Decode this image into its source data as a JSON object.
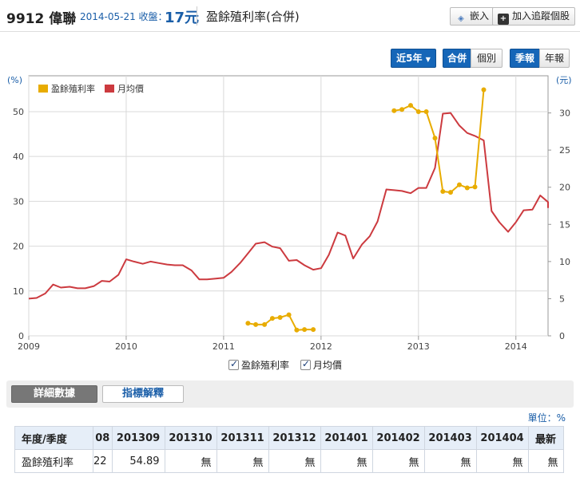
{
  "header": {
    "stock_id_name": "9912 偉聯",
    "date_close": "2014-05-21 收盤：",
    "price": "17元",
    "page_title": "盈餘殖利率(合併)",
    "embed_label": "嵌入",
    "watchlist_label": "加入追蹤個股"
  },
  "controls": {
    "range_label": "近5年",
    "consolidated_label": "合併",
    "individual_label": "個別",
    "quarterly_label": "季報",
    "annual_label": "年報"
  },
  "colors": {
    "yield": "#e8ac00",
    "price": "#cc3a3f",
    "grid": "#d9d9d9",
    "accent": "#1566b8"
  },
  "chart_data": {
    "type": "line",
    "left_unit": "(%)",
    "right_unit": "(元)",
    "x_ticks": [
      "2009",
      "2010",
      "2011",
      "2012",
      "2013",
      "2014"
    ],
    "y_left_ticks": [
      "0",
      "10",
      "20",
      "30",
      "40",
      "50"
    ],
    "y_right_ticks": [
      "0",
      "5",
      "10",
      "15",
      "20",
      "25",
      "30"
    ],
    "ylim_left": [
      0,
      58
    ],
    "ylim_right": [
      0,
      35
    ],
    "xlim": [
      2009.0,
      2014.33
    ],
    "legend_position": "top-left",
    "series": [
      {
        "name": "盈餘殖利率",
        "axis": "left",
        "style": "line-markers",
        "segments": [
          [
            [
              2011.25,
              2.8
            ],
            [
              2011.33,
              2.5
            ],
            [
              2011.42,
              2.5
            ],
            [
              2011.5,
              3.9
            ],
            [
              2011.58,
              4.1
            ],
            [
              2011.67,
              4.7
            ],
            [
              2011.75,
              1.3
            ],
            [
              2011.83,
              1.4
            ],
            [
              2011.92,
              1.4
            ]
          ],
          [
            [
              2012.75,
              50.2
            ],
            [
              2012.83,
              50.5
            ],
            [
              2012.92,
              51.4
            ],
            [
              2013.0,
              50.0
            ],
            [
              2013.08,
              50.0
            ],
            [
              2013.17,
              44.1
            ],
            [
              2013.25,
              32.2
            ],
            [
              2013.33,
              32.0
            ],
            [
              2013.42,
              33.7
            ],
            [
              2013.5,
              33.0
            ],
            [
              2013.58,
              33.2
            ],
            [
              2013.67,
              54.89
            ]
          ]
        ]
      },
      {
        "name": "月均價",
        "axis": "right",
        "style": "line",
        "points": [
          [
            2009.0,
            5.0
          ],
          [
            2009.08,
            5.1
          ],
          [
            2009.17,
            5.7
          ],
          [
            2009.25,
            6.9
          ],
          [
            2009.33,
            6.5
          ],
          [
            2009.42,
            6.6
          ],
          [
            2009.5,
            6.4
          ],
          [
            2009.58,
            6.4
          ],
          [
            2009.67,
            6.7
          ],
          [
            2009.75,
            7.4
          ],
          [
            2009.83,
            7.3
          ],
          [
            2009.92,
            8.2
          ],
          [
            2010.0,
            10.3
          ],
          [
            2010.08,
            10.0
          ],
          [
            2010.17,
            9.7
          ],
          [
            2010.25,
            10.0
          ],
          [
            2010.33,
            9.8
          ],
          [
            2010.42,
            9.6
          ],
          [
            2010.5,
            9.5
          ],
          [
            2010.58,
            9.5
          ],
          [
            2010.67,
            8.8
          ],
          [
            2010.75,
            7.6
          ],
          [
            2010.83,
            7.6
          ],
          [
            2010.92,
            7.7
          ],
          [
            2011.0,
            7.8
          ],
          [
            2011.08,
            8.6
          ],
          [
            2011.17,
            9.8
          ],
          [
            2011.25,
            11.1
          ],
          [
            2011.33,
            12.4
          ],
          [
            2011.42,
            12.6
          ],
          [
            2011.5,
            12.0
          ],
          [
            2011.58,
            11.8
          ],
          [
            2011.67,
            10.1
          ],
          [
            2011.75,
            10.2
          ],
          [
            2011.83,
            9.5
          ],
          [
            2011.92,
            8.9
          ],
          [
            2012.0,
            9.1
          ],
          [
            2012.08,
            10.9
          ],
          [
            2012.17,
            13.9
          ],
          [
            2012.25,
            13.5
          ],
          [
            2012.33,
            10.4
          ],
          [
            2012.42,
            12.3
          ],
          [
            2012.5,
            13.4
          ],
          [
            2012.58,
            15.4
          ],
          [
            2012.67,
            19.7
          ],
          [
            2012.75,
            19.6
          ],
          [
            2012.83,
            19.5
          ],
          [
            2012.92,
            19.2
          ],
          [
            2013.0,
            19.9
          ],
          [
            2013.08,
            19.9
          ],
          [
            2013.17,
            22.6
          ],
          [
            2013.25,
            29.9
          ],
          [
            2013.33,
            30.0
          ],
          [
            2013.42,
            28.3
          ],
          [
            2013.5,
            27.3
          ],
          [
            2013.58,
            26.9
          ],
          [
            2013.67,
            26.3
          ],
          [
            2013.75,
            16.8
          ],
          [
            2013.83,
            15.3
          ],
          [
            2013.92,
            14.0
          ],
          [
            2014.0,
            15.3
          ],
          [
            2014.08,
            16.9
          ],
          [
            2014.17,
            17.0
          ],
          [
            2014.25,
            18.9
          ],
          [
            2014.33,
            18.0
          ],
          [
            2014.42,
            17.2
          ]
        ]
      }
    ]
  },
  "bottom_legend": {
    "yield_label": "盈餘殖利率",
    "price_label": "月均價"
  },
  "tabs": {
    "detail_label": "詳細數據",
    "explain_label": "指標解釋"
  },
  "unit_label": "單位：%",
  "table": {
    "row_header_label": "年度/季度",
    "columns": [
      "08",
      "201309",
      "201310",
      "201311",
      "201312",
      "201401",
      "201402",
      "201403",
      "201404",
      "最新"
    ],
    "row_label": "盈餘殖利率",
    "values": [
      "22",
      "54.89",
      "無",
      "無",
      "無",
      "無",
      "無",
      "無",
      "無",
      "無"
    ]
  }
}
